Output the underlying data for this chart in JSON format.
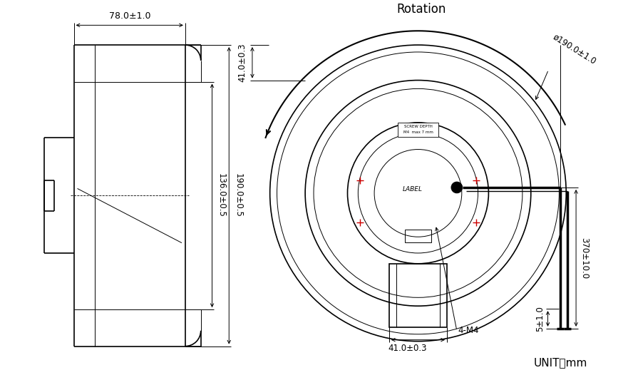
{
  "bg_color": "#ffffff",
  "line_color": "#000000",
  "red_color": "#cc0000",
  "font_size_dim": 8.5,
  "font_size_title": 12,
  "font_size_unit": 11,
  "title": "Rotation",
  "unit_text": "UNIT：mm",
  "dims": {
    "width_top": "78.0±1.0",
    "height_136": "136.0±0.5",
    "height_190": "190.0±0.5",
    "dia_190": "ø190.0±1.0",
    "h_41_top": "41.0±0.3",
    "h_41_bot": "41.0±0.3",
    "wire_len": "370±10.0",
    "wire_short": "5±1.0",
    "screw": "4-M4"
  }
}
